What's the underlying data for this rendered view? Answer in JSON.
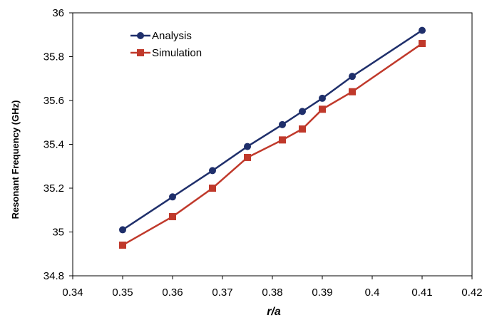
{
  "chart_data": {
    "type": "line",
    "title": "",
    "xlabel": "r/a",
    "ylabel": "Resonant Frequency (GHz)",
    "xlim": [
      0.34,
      0.42
    ],
    "ylim": [
      34.8,
      36
    ],
    "xticks": [
      "0.34",
      "0.35",
      "0.36",
      "0.37",
      "0.38",
      "0.39",
      "0.4",
      "0.41",
      "0.42"
    ],
    "yticks": [
      "34.8",
      "35",
      "35.2",
      "35.4",
      "35.6",
      "35.8",
      "36"
    ],
    "grid": false,
    "legend_position": "top-left",
    "series": [
      {
        "name": "Analysis",
        "color": "#1f2f6b",
        "marker": "circle",
        "x": [
          0.35,
          0.36,
          0.368,
          0.375,
          0.382,
          0.386,
          0.39,
          0.396,
          0.41
        ],
        "y": [
          35.01,
          35.16,
          35.28,
          35.39,
          35.49,
          35.55,
          35.61,
          35.71,
          35.92
        ]
      },
      {
        "name": "Simulation",
        "color": "#c0392b",
        "marker": "square",
        "x": [
          0.35,
          0.36,
          0.368,
          0.375,
          0.382,
          0.386,
          0.39,
          0.396,
          0.41
        ],
        "y": [
          34.94,
          35.07,
          35.2,
          35.34,
          35.42,
          35.47,
          35.56,
          35.64,
          35.86
        ]
      }
    ]
  }
}
